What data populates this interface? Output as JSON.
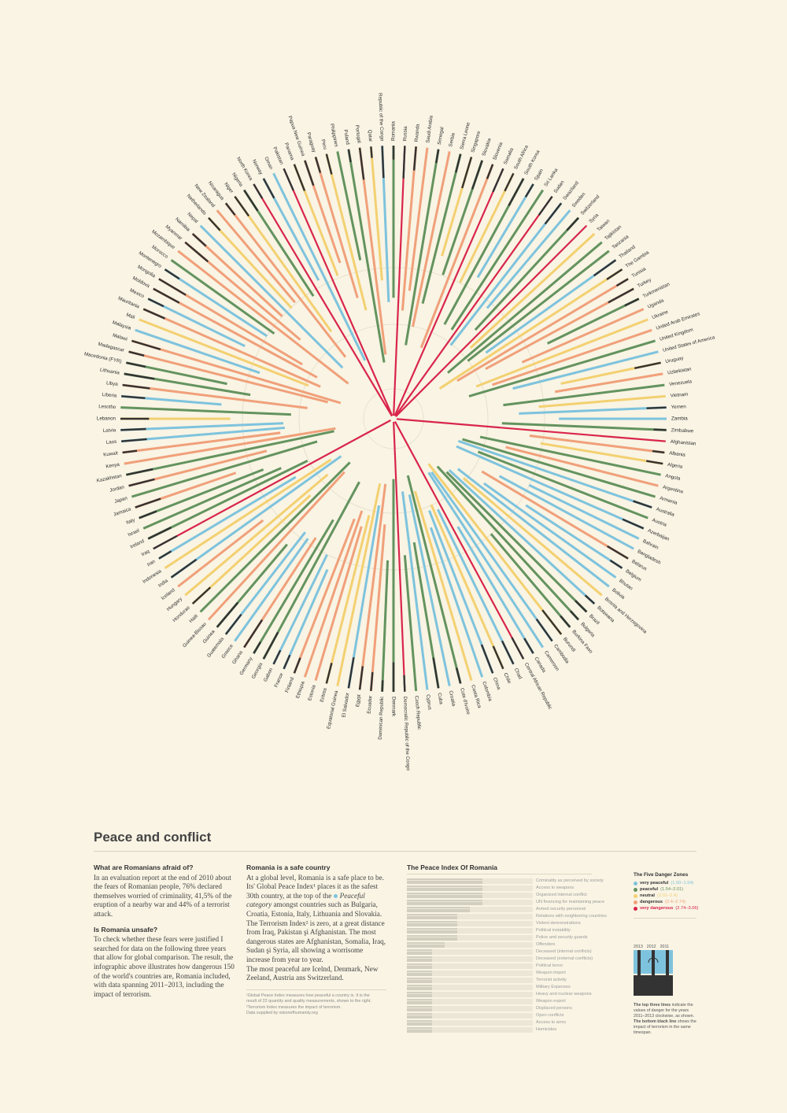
{
  "chart_data": {
    "type": "radial-bar",
    "countries": [
      "Romania",
      "Russia",
      "Rwanda",
      "Saudi Arabia",
      "Senegal",
      "Serbia",
      "Sierra Leone",
      "Singapore",
      "Slovakia",
      "Slovenia",
      "Somalia",
      "South Africa",
      "South Korea",
      "Spain",
      "Sri Lanka",
      "Sudan",
      "Swaziland",
      "Sweden",
      "Switzerland",
      "Syria",
      "Taiwan",
      "Tajikistan",
      "Tanzania",
      "Thailand",
      "The Gambia",
      "Tunisia",
      "Turkey",
      "Turkmenistan",
      "Uganda",
      "Ukraine",
      "United Arab Emirates",
      "United Kingdom",
      "United States of America",
      "Uruguay",
      "Uzbekistan",
      "Venezuela",
      "Vietnam",
      "Yemen",
      "Zambia",
      "Zimbabwe",
      "Afghanistan",
      "Albania",
      "Algeria",
      "Angola",
      "Argentina",
      "Armenia",
      "Australia",
      "Austria",
      "Azerbaijan",
      "Bahrain",
      "Bangladesh",
      "Belarus",
      "Belgium",
      "Bhutan",
      "Bolivia",
      "Bosnia and Herzegovina",
      "Botswana",
      "Brazil",
      "Bulgaria",
      "Burkina Faso",
      "Burundi",
      "Cambodia",
      "Cameroon",
      "Canada",
      "Central African Republic",
      "Chad",
      "Chile",
      "China",
      "Colombia",
      "Costa Rica",
      "Cote d'Ivoire",
      "Croatia",
      "Cuba",
      "Cyprus",
      "Czech Republic",
      "Democratic Republic of the Congo",
      "Denmark",
      "Dominican Republic",
      "Ecuador",
      "Egypt",
      "El Salvador",
      "Equatorial Guinea",
      "Eritrea",
      "Estonia",
      "Ethiopia",
      "Finland",
      "France",
      "Gabon",
      "Georgia",
      "Germany",
      "Ghana",
      "Greece",
      "Guatemala",
      "Guinea",
      "Guinea-Bissau",
      "Haiti",
      "Honduras",
      "Hungary",
      "Iceland",
      "India",
      "Indonesia",
      "Iran",
      "Iraq",
      "Ireland",
      "Israel",
      "Italy",
      "Jamaica",
      "Japan",
      "Jordan",
      "Kazakhstan",
      "Kenya",
      "Kuwait",
      "Laos",
      "Latvia",
      "Lebanon",
      "Lesotho",
      "Liberia",
      "Libya",
      "Lithuania",
      "Macedonia (FYR)",
      "Madagascar",
      "Malawi",
      "Malaysia",
      "Mali",
      "Mauritania",
      "Mexico",
      "Moldova",
      "Mongolia",
      "Montenegro",
      "Morocco",
      "Mozambique",
      "Myanmar",
      "Namibia",
      "Nepal",
      "Netherlands",
      "New Zealand",
      "Nicaragua",
      "Niger",
      "Nigeria",
      "North Korea",
      "Norway",
      "Oman",
      "Pakistan",
      "Panama",
      "Papua New Guinea",
      "Paraguay",
      "Peru",
      "Philippines",
      "Poland",
      "Portugal",
      "Qatar",
      "Republic of the Congo"
    ],
    "highlight": "Romania",
    "very_dangerous": [
      "Syria",
      "Afghanistan",
      "Somalia",
      "Iraq",
      "Sudan",
      "Democratic Republic of the Congo",
      "Central African Republic",
      "Pakistan",
      "North Korea",
      "Russia"
    ],
    "zones": [
      {
        "name": "very peaceful",
        "range": "(1.00–1.54)",
        "color": "#7ec3dd"
      },
      {
        "name": "peaceful",
        "range": "(1.54–2.01)",
        "color": "#64935f"
      },
      {
        "name": "neutral",
        "range": "(2.01–2.4)",
        "color": "#f3d071"
      },
      {
        "name": "dangerous",
        "range": "(2.4–2.74)",
        "color": "#f0a07a"
      },
      {
        "name": "very dangerous",
        "range": "(2.74–3.06)",
        "color": "#d9254b"
      }
    ],
    "terrorism_color": "#333333"
  },
  "article": {
    "title": "Peace and conflict",
    "col1": {
      "h1": "What are Romanians afraid of?",
      "p1": "In an evaluation report at the end of 2010 about the fears of Romanian people, 76% declared themselves worried of criminality, 41,5% of the eruption of a nearby war and 44% of a terrorist attack.",
      "h2": "Is Romania unsafe?",
      "p2": "To check whether these fears were justified I searched for data on the following three years that allow for global comparison. The result, the infographic above illustrates how dangerous 150 of the world's countries are, Romania included, with data spanning 2011–2013, including the impact of terrorism."
    },
    "col2": {
      "h1": "Romania is a safe country",
      "p1a": "At a global level, Romania is a safe place to be. Its' Global Peace Index¹ places it as the safest 30th country, at the top of the",
      "p1b": "Peaceful category",
      "p1c": "amongst countries such as Bulgaria, Croatia, Estonia, Italy, Lithuania and Slovakia. The Terrorism Index² is zero, at a great distance from Iraq, Pakistan şi Afghanistan. The most dangerous states are Afghanistan, Somalia, Iraq, Sudan şi Syria, all showing a worrisome increase from year to year.",
      "p2": "The most peaceful are Icelnd, Denmark, New Zeeland, Austria ans Switzerland.",
      "n1": "¹Global Peace Index measures how peaceful a country is. It is the",
      "n2": "result of 22 quantity and quality measurements, shown to the right.",
      "n3": "²Terrorism Index measures the impact of terrorism.",
      "n4": "Data supplied by visionofhumanity.org"
    }
  },
  "peace_index": {
    "title": "The Peace Index Of Romania",
    "rows": [
      {
        "label": "Criminality as perceived by society",
        "value": 3
      },
      {
        "label": "Access to weapons",
        "value": 3
      },
      {
        "label": "Organized internal conflict",
        "value": 3
      },
      {
        "label": "UN financing for maintaining peace",
        "value": 3
      },
      {
        "label": "Armed security personnel",
        "value": 2.5
      },
      {
        "label": "Relations with neighboring countries",
        "value": 2
      },
      {
        "label": "Violent demonstrations",
        "value": 2
      },
      {
        "label": "Political instability",
        "value": 2
      },
      {
        "label": "Police and security guards",
        "value": 2
      },
      {
        "label": "Offenders",
        "value": 1.5
      },
      {
        "label": "Deceased (internal conflicts)",
        "value": 1
      },
      {
        "label": "Deceased (external conflicts)",
        "value": 1
      },
      {
        "label": "Political terror",
        "value": 1
      },
      {
        "label": "Weapon import",
        "value": 1
      },
      {
        "label": "Terrorist activity",
        "value": 1
      },
      {
        "label": "Military Expenses",
        "value": 1
      },
      {
        "label": "Heavy and nuclear weapons",
        "value": 1
      },
      {
        "label": "Weapon export",
        "value": 1
      },
      {
        "label": "Displaced persons",
        "value": 1
      },
      {
        "label": "Open conflicts",
        "value": 1
      },
      {
        "label": "Access to arms",
        "value": 1
      },
      {
        "label": "Homicides",
        "value": 1
      }
    ],
    "max": 5
  },
  "legend": {
    "title": "The Five Danger Zones",
    "years": [
      "2013",
      "2012",
      "2011"
    ],
    "note_a": "The top three lines",
    "note_b": "indicate the values of danger for the years 2011–2013 clockwise, as shown.",
    "note_c": "The bottom black line",
    "note_d": "shows the impact of terrorism in the same timespan."
  }
}
